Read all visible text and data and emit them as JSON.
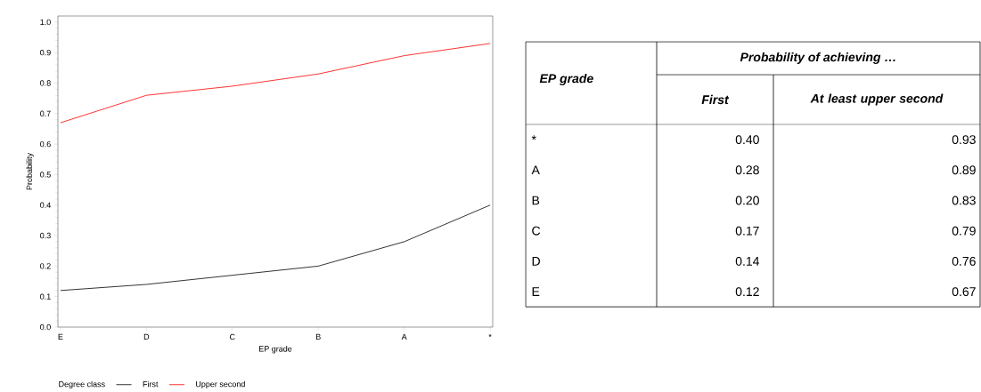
{
  "chart_data": [
    {
      "type": "line",
      "xlabel": "EP grade",
      "ylabel": "Probability",
      "legend_title": "Degree class",
      "legend": "bottom",
      "grid": false,
      "marker": "none",
      "line_style": "solid",
      "categories": [
        "E",
        "D",
        "C",
        "B",
        "A",
        "*"
      ],
      "series": [
        {
          "name": "First",
          "color": "#000000",
          "values": [
            0.12,
            0.14,
            0.17,
            0.2,
            0.28,
            0.4
          ]
        },
        {
          "name": "Upper second",
          "color": "#ff0000",
          "values": [
            0.67,
            0.76,
            0.79,
            0.83,
            0.89,
            0.93
          ]
        }
      ],
      "ylim": [
        0,
        1.02
      ],
      "yticks": [
        {
          "value": 0,
          "label": "0.0"
        },
        0.1,
        0.2,
        0.3,
        0.4,
        0.5,
        0.6,
        0.7,
        0.8,
        0.9,
        {
          "value": 1,
          "label": "1.0"
        }
      ]
    },
    {
      "type": "other",
      "annotations": [
        "EP grade",
        "Probability of achieving …",
        "First",
        "At least upper second",
        "*",
        "0.40",
        "0.93",
        "A",
        "0.28",
        "0.89",
        "B",
        "0.20",
        "0.83",
        "C",
        "0.17",
        "0.79",
        "D",
        "0.14",
        "0.76",
        "E",
        "0.12",
        "0.67"
      ]
    }
  ]
}
